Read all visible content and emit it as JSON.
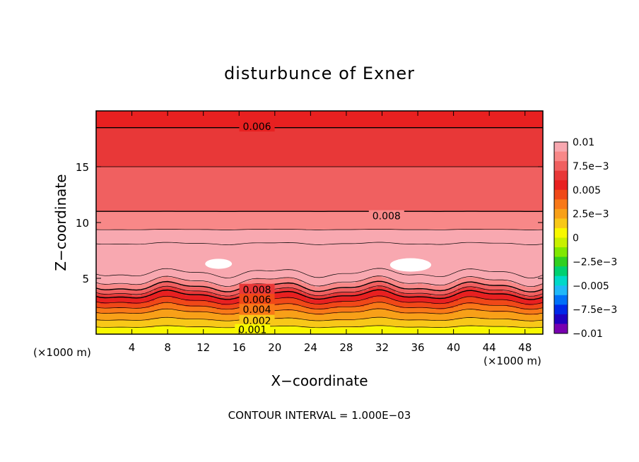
{
  "chart_data": {
    "type": "heatmap",
    "title": "disturbunce of Exner",
    "xlabel": "X−coordinate",
    "ylabel": "Z−coordinate",
    "x_unit_left": "(×1000 m)",
    "x_unit_right": "(×1000 m)",
    "xlim": [
      0,
      50
    ],
    "ylim": [
      0,
      20
    ],
    "x_ticks": [
      4,
      8,
      12,
      16,
      20,
      24,
      28,
      32,
      36,
      40,
      44,
      48
    ],
    "y_ticks": [
      5,
      10,
      15
    ],
    "x_tick_labels": [
      "4",
      "8",
      "12",
      "16",
      "20",
      "24",
      "28",
      "32",
      "36",
      "40",
      "44",
      "48"
    ],
    "y_tick_labels": [
      "5",
      "10",
      "15"
    ],
    "contour_interval": 0.001,
    "footer": "CONTOUR INTERVAL = 1.000E−03",
    "colorbar": {
      "range": [
        -0.01,
        0.01
      ],
      "tick_values": [
        0.01,
        0.0075,
        0.005,
        0.0025,
        0,
        -0.0025,
        -0.005,
        -0.0075,
        -0.01
      ],
      "tick_labels": [
        "0.01",
        "7.5e−3",
        "0.005",
        "2.5e−3",
        "0",
        "−2.5e−3",
        "−0.005",
        "−7.5e−3",
        "−0.01"
      ],
      "colors": [
        "#f8a8b0",
        "#f88888",
        "#f06060",
        "#e83838",
        "#e82020",
        "#f04818",
        "#f87818",
        "#f8a018",
        "#f8c818",
        "#f8f800",
        "#c8f000",
        "#80e800",
        "#30d020",
        "#00d070",
        "#00d8c8",
        "#20b8f8",
        "#0070f8",
        "#0028e8",
        "#2000c0",
        "#7800b0"
      ]
    },
    "profile": {
      "z": [
        0,
        1,
        2,
        3,
        3.5,
        4,
        4.5,
        5,
        6,
        7,
        8,
        9,
        10,
        11,
        13,
        15,
        17,
        18.5,
        20
      ],
      "values": [
        0.0,
        0.0015,
        0.003,
        0.005,
        0.006,
        0.0075,
        0.0085,
        0.0095,
        0.0105,
        0.0106,
        0.0101,
        0.0093,
        0.0085,
        0.008,
        0.0074,
        0.007,
        0.0065,
        0.006,
        0.0056
      ]
    },
    "contour_labels": [
      {
        "text": "0.006",
        "x": 18,
        "y": 18.6
      },
      {
        "text": "0.008",
        "x": 32.5,
        "y": 10.6
      },
      {
        "text": "0.008",
        "x": 18,
        "y": 4.0
      },
      {
        "text": "0.006",
        "x": 18,
        "y": 3.1
      },
      {
        "text": "0.004",
        "x": 18,
        "y": 2.2
      },
      {
        "text": "0.002",
        "x": 18,
        "y": 1.2
      },
      {
        "text": "0.001",
        "x": 17.5,
        "y": 0.4
      }
    ],
    "maxima_regions": [
      {
        "x": 13.7,
        "y": 6.3,
        "rx": 1.5,
        "ry": 0.45
      },
      {
        "x": 35.2,
        "y": 6.2,
        "rx": 2.3,
        "ry": 0.6
      }
    ],
    "grid": false
  }
}
